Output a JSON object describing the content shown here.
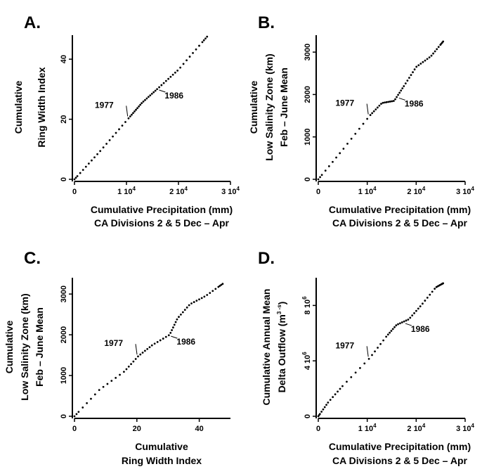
{
  "chart_data": [
    {
      "id": "A",
      "type": "scatter",
      "panel_label": "A.",
      "ylabel": [
        "Cumulative",
        "Ring Width Index"
      ],
      "xlabel": [
        "Cumulative Precipitation (mm)",
        "CA Divisions 2 & 5 Dec – Apr"
      ],
      "xlim": [
        0,
        30000
      ],
      "ylim": [
        0,
        48
      ],
      "xticks": [
        {
          "v": 0,
          "t": "0"
        },
        {
          "v": 10000,
          "t": "1 10",
          "sup": "4"
        },
        {
          "v": 20000,
          "t": "2 10",
          "sup": "4"
        },
        {
          "v": 30000,
          "t": "3 10",
          "sup": "4"
        }
      ],
      "yticks": [
        {
          "v": 0,
          "t": "0"
        },
        {
          "v": 20,
          "t": "20"
        },
        {
          "v": 40,
          "t": "40"
        }
      ],
      "annotations": [
        {
          "text": "1977",
          "x": 10500,
          "y": 20.5,
          "side": "left"
        },
        {
          "text": "1986",
          "x": 16000,
          "y": 30.2,
          "side": "right"
        }
      ],
      "curve": [
        [
          0,
          0
        ],
        [
          5000,
          9.5
        ],
        [
          10500,
          20.5
        ],
        [
          13000,
          25.5
        ],
        [
          16000,
          30.2
        ],
        [
          20000,
          36.5
        ],
        [
          25500,
          47.5
        ]
      ]
    },
    {
      "id": "B",
      "type": "scatter",
      "panel_label": "B.",
      "ylabel": [
        "Cumulative",
        "Low Salinity Zone (km)",
        "Feb – June Mean"
      ],
      "xlabel": [
        "Cumulative Precipitation (mm)",
        "CA Divisions 2 & 5 Dec – Apr"
      ],
      "xlim": [
        0,
        30000
      ],
      "ylim": [
        0,
        3400
      ],
      "xticks": [
        {
          "v": 0,
          "t": "0"
        },
        {
          "v": 10000,
          "t": "1 10",
          "sup": "4"
        },
        {
          "v": 20000,
          "t": "2 10",
          "sup": "4"
        },
        {
          "v": 30000,
          "t": "3 10",
          "sup": "4"
        }
      ],
      "yticks": [
        {
          "v": 0,
          "t": "0"
        },
        {
          "v": 1000,
          "t": "1000"
        },
        {
          "v": 2000,
          "t": "2000"
        },
        {
          "v": 3000,
          "t": "3000"
        }
      ],
      "annotations": [
        {
          "text": "1977",
          "x": 10500,
          "y": 1500,
          "side": "left"
        },
        {
          "text": "1986",
          "x": 16200,
          "y": 1950,
          "side": "right"
        }
      ],
      "curve": [
        [
          0,
          0
        ],
        [
          5000,
          700
        ],
        [
          10500,
          1500
        ],
        [
          13000,
          1800
        ],
        [
          15500,
          1850
        ],
        [
          17500,
          2200
        ],
        [
          20000,
          2650
        ],
        [
          23000,
          2900
        ],
        [
          25500,
          3250
        ]
      ]
    },
    {
      "id": "C",
      "type": "scatter",
      "panel_label": "C.",
      "ylabel": [
        "Cumulative",
        "Low Salinity Zone (km)",
        "Feb – June Mean"
      ],
      "xlabel": [
        "Cumulative",
        "Ring Width Index"
      ],
      "xlim": [
        0,
        50
      ],
      "ylim": [
        0,
        3400
      ],
      "xticks": [
        {
          "v": 0,
          "t": "0"
        },
        {
          "v": 20,
          "t": "20"
        },
        {
          "v": 40,
          "t": "40"
        }
      ],
      "yticks": [
        {
          "v": 0,
          "t": "0"
        },
        {
          "v": 1000,
          "t": "1000"
        },
        {
          "v": 2000,
          "t": "2000"
        },
        {
          "v": 3000,
          "t": "3000"
        }
      ],
      "annotations": [
        {
          "text": "1977",
          "x": 20.5,
          "y": 1480,
          "side": "left"
        },
        {
          "text": "1986",
          "x": 30.5,
          "y": 2000,
          "side": "right"
        }
      ],
      "curve": [
        [
          0,
          0
        ],
        [
          8,
          650
        ],
        [
          16,
          1100
        ],
        [
          20.5,
          1480
        ],
        [
          25,
          1750
        ],
        [
          30.5,
          2000
        ],
        [
          33,
          2400
        ],
        [
          37,
          2750
        ],
        [
          42,
          2950
        ],
        [
          47.5,
          3250
        ]
      ]
    },
    {
      "id": "D",
      "type": "scatter",
      "panel_label": "D.",
      "ylabel": [
        "Cumulative Annual Mean",
        "Delta Outflow (m",
        "3 -s",
        ")"
      ],
      "xlabel": [
        "Cumulative Precipitation (mm)",
        "CA Divisions 2 & 5 Dec – Apr"
      ],
      "xlim": [
        0,
        30000
      ],
      "ylim": [
        0,
        10000000
      ],
      "xticks": [
        {
          "v": 0,
          "t": "0"
        },
        {
          "v": 10000,
          "t": "1 10",
          "sup": "4"
        },
        {
          "v": 20000,
          "t": "2 10",
          "sup": "4"
        },
        {
          "v": 30000,
          "t": "3 10",
          "sup": "4"
        }
      ],
      "yticks": [
        {
          "v": 0,
          "t": "0"
        },
        {
          "v": 4000000,
          "t": "4 10",
          "sup": "6"
        },
        {
          "v": 8000000,
          "t": "8 10",
          "sup": "6"
        }
      ],
      "annotations": [
        {
          "text": "1977",
          "x": 10500,
          "y": 4200000,
          "side": "left"
        },
        {
          "text": "1986",
          "x": 17500,
          "y": 6800000,
          "side": "right"
        }
      ],
      "curve": [
        [
          0,
          0
        ],
        [
          2000,
          1000000
        ],
        [
          5000,
          2200000
        ],
        [
          10500,
          4200000
        ],
        [
          14000,
          5800000
        ],
        [
          16000,
          6600000
        ],
        [
          18500,
          7000000
        ],
        [
          21000,
          8000000
        ],
        [
          24000,
          9300000
        ],
        [
          25500,
          9600000
        ]
      ]
    }
  ]
}
